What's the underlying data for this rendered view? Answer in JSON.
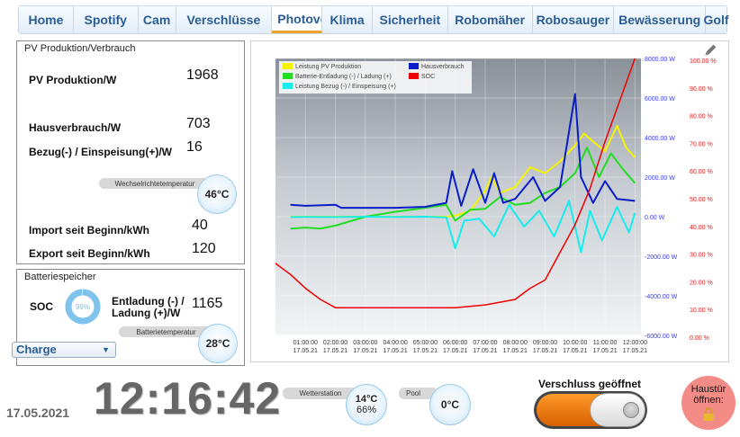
{
  "tabs": [
    {
      "label": "Home",
      "active": false
    },
    {
      "label": "Spotify",
      "active": false
    },
    {
      "label": "Cam",
      "active": false
    },
    {
      "label": "Verschlüsse",
      "active": false
    },
    {
      "label": "Photovoltaik",
      "active": true
    },
    {
      "label": "Klima",
      "active": false
    },
    {
      "label": "Sicherheit",
      "active": false
    },
    {
      "label": "Robomäher",
      "active": false
    },
    {
      "label": "Robosauger",
      "active": false
    },
    {
      "label": "Bewässerung",
      "active": false
    },
    {
      "label": "Golf",
      "active": false
    }
  ],
  "pv": {
    "title": "PV Produktion/Verbrauch",
    "production_label": "PV Produktion/W",
    "production_value": "1968",
    "consumption_label": "Hausverbrauch/W",
    "consumption_value": "703",
    "grid_label": "Bezug(-) / Einspeisung(+)/W",
    "grid_value": "16",
    "inverter_temp_label": "Wechselrichtetemperatur",
    "inverter_temp_value": "46°C",
    "import_label": "Import seit Beginn/kWh",
    "import_value": "40",
    "export_label": "Export seit Beginn/kWh",
    "export_value": "120"
  },
  "battery": {
    "title": "Batteriespeicher",
    "soc_label": "SOC",
    "soc_percent": 99,
    "soc_text": "99%",
    "charge_label_1": "Entladung (-) /",
    "charge_label_2": "Ladung (+)/W",
    "charge_value": "1165",
    "temp_label": "Batterietemperatur",
    "temp_value": "28°C",
    "mode_selected": "Charge"
  },
  "chart_data": {
    "type": "line",
    "legend_position": "top-left",
    "legend": [
      "Leistung PV Produktion",
      "Hausverbrauch",
      "Batterie-Entladung (-) / Ladung (+)",
      "SOC",
      "Leistung Bezug (-) / Einspeisung (+)"
    ],
    "x_ticks": [
      {
        "time": "01:00:00",
        "date": "17.05.21"
      },
      {
        "time": "02:00:00",
        "date": "17.05.21"
      },
      {
        "time": "03:00:00",
        "date": "17.05.21"
      },
      {
        "time": "04:00:00",
        "date": "17.05.21"
      },
      {
        "time": "05:00:00",
        "date": "17.05.21"
      },
      {
        "time": "06:00:00",
        "date": "17.05.21"
      },
      {
        "time": "07:00:00",
        "date": "17.05.21"
      },
      {
        "time": "08:00:00",
        "date": "17.05.21"
      },
      {
        "time": "09:00:00",
        "date": "17.05.21"
      },
      {
        "time": "10:00:00",
        "date": "17.05.21"
      },
      {
        "time": "11:00:00",
        "date": "17.05.21"
      },
      {
        "time": "12:00:00",
        "date": "17.05.21"
      }
    ],
    "y_left": {
      "ticks": [
        "8000.00 W",
        "6000.00 W",
        "4000.00 W",
        "2000.00 W",
        "0.00 W",
        "-2000.00 W",
        "-4000.00 W",
        "-6000.00 W"
      ],
      "range": [
        -6000,
        8000
      ],
      "color": "#3a3aee"
    },
    "y_right": {
      "ticks": [
        "100.00 %",
        "90.00 %",
        "80.00 %",
        "70.00 %",
        "60.00 %",
        "50.00 %",
        "40.00 %",
        "30.00 %",
        "20.00 %",
        "10.00 %",
        "0.00 %"
      ],
      "range": [
        0,
        100
      ],
      "color": "#e02020"
    },
    "series": [
      {
        "name": "Leistung PV Produktion",
        "color": "#f4f400",
        "unit": "W",
        "points": [
          [
            0.5,
            0
          ],
          [
            1,
            0
          ],
          [
            2,
            0
          ],
          [
            3,
            0
          ],
          [
            4,
            0
          ],
          [
            5,
            0
          ],
          [
            5.7,
            0
          ],
          [
            6,
            50
          ],
          [
            6.5,
            300
          ],
          [
            7,
            1300
          ],
          [
            7.2,
            2000
          ],
          [
            7.5,
            1200
          ],
          [
            8,
            1500
          ],
          [
            8.5,
            2500
          ],
          [
            9,
            2200
          ],
          [
            9.5,
            2800
          ],
          [
            10,
            3600
          ],
          [
            10.3,
            4200
          ],
          [
            10.6,
            3800
          ],
          [
            11,
            3300
          ],
          [
            11.4,
            4600
          ],
          [
            11.7,
            3500
          ],
          [
            12,
            3000
          ]
        ]
      },
      {
        "name": "Hausverbrauch",
        "color": "#0a1ec8",
        "unit": "W",
        "points": [
          [
            0.5,
            600
          ],
          [
            1,
            550
          ],
          [
            2,
            600
          ],
          [
            2.2,
            450
          ],
          [
            3,
            450
          ],
          [
            4,
            450
          ],
          [
            5,
            500
          ],
          [
            5.7,
            700
          ],
          [
            5.9,
            2300
          ],
          [
            6.2,
            550
          ],
          [
            6.6,
            2400
          ],
          [
            7,
            700
          ],
          [
            7.3,
            2200
          ],
          [
            7.6,
            700
          ],
          [
            8,
            900
          ],
          [
            8.6,
            2000
          ],
          [
            9,
            800
          ],
          [
            9.5,
            1500
          ],
          [
            10,
            6200
          ],
          [
            10.2,
            2000
          ],
          [
            10.6,
            700
          ],
          [
            11,
            1800
          ],
          [
            11.4,
            900
          ],
          [
            12,
            800
          ]
        ]
      },
      {
        "name": "Batterie-Entladung (-) / Ladung (+)",
        "color": "#22dd22",
        "unit": "W",
        "points": [
          [
            0.5,
            -600
          ],
          [
            1,
            -550
          ],
          [
            1.5,
            -600
          ],
          [
            2,
            -450
          ],
          [
            3,
            0
          ],
          [
            4,
            250
          ],
          [
            5,
            450
          ],
          [
            5.7,
            600
          ],
          [
            6,
            -200
          ],
          [
            6.5,
            350
          ],
          [
            7,
            400
          ],
          [
            7.5,
            1000
          ],
          [
            8,
            600
          ],
          [
            8.5,
            700
          ],
          [
            9,
            1200
          ],
          [
            9.5,
            1500
          ],
          [
            10,
            2200
          ],
          [
            10.4,
            3500
          ],
          [
            10.8,
            2000
          ],
          [
            11.2,
            3200
          ],
          [
            11.6,
            2400
          ],
          [
            12,
            1700
          ]
        ]
      },
      {
        "name": "SOC",
        "color": "#ee0000",
        "unit": "%",
        "points": [
          [
            0,
            26
          ],
          [
            0.5,
            22
          ],
          [
            1,
            17
          ],
          [
            1.5,
            13
          ],
          [
            2,
            10
          ],
          [
            3,
            10
          ],
          [
            4,
            10
          ],
          [
            5,
            10
          ],
          [
            6,
            10
          ],
          [
            7,
            11
          ],
          [
            8,
            13
          ],
          [
            8.5,
            17
          ],
          [
            9,
            20
          ],
          [
            9.5,
            30
          ],
          [
            10,
            40
          ],
          [
            10.5,
            53
          ],
          [
            11,
            70
          ],
          [
            11.5,
            85
          ],
          [
            12,
            100
          ]
        ]
      },
      {
        "name": "Leistung Bezug (-) / Einspeisung (+)",
        "color": "#18ecec",
        "unit": "W",
        "points": [
          [
            0.5,
            -20
          ],
          [
            1,
            -10
          ],
          [
            2,
            -20
          ],
          [
            3,
            0
          ],
          [
            4,
            -10
          ],
          [
            5,
            0
          ],
          [
            5.7,
            -30
          ],
          [
            6,
            -1600
          ],
          [
            6.3,
            -200
          ],
          [
            6.8,
            -100
          ],
          [
            7.3,
            -1000
          ],
          [
            7.8,
            600
          ],
          [
            8.3,
            -500
          ],
          [
            8.8,
            300
          ],
          [
            9.3,
            -1000
          ],
          [
            9.8,
            800
          ],
          [
            10.2,
            -1800
          ],
          [
            10.5,
            300
          ],
          [
            10.9,
            -1200
          ],
          [
            11.4,
            500
          ],
          [
            11.8,
            -800
          ],
          [
            12,
            200
          ]
        ]
      }
    ]
  },
  "bottom": {
    "date": "17.05.2021",
    "time": "12:16:42",
    "weather_label": "Wetterstation",
    "weather_temp": "14°C",
    "weather_humidity": "66%",
    "pool_label": "Pool",
    "pool_temp": "0°C",
    "switch_label": "Verschluss geöffnet",
    "switch_on": true,
    "door_label_1": "Haustür",
    "door_label_2": "öffnen:",
    "door_icon": "lock-icon"
  }
}
